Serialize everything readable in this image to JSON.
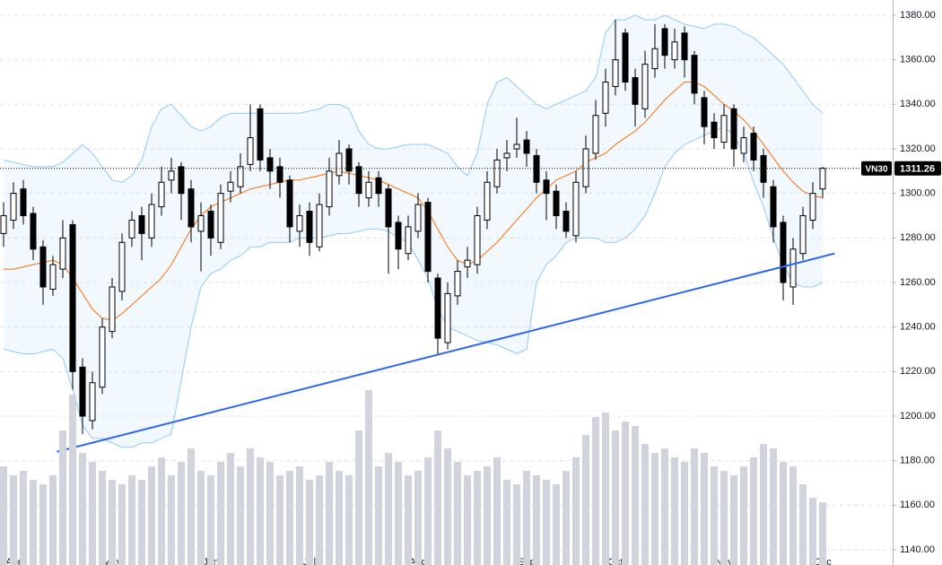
{
  "chart_data": {
    "type": "candlestick",
    "symbol": "VN30",
    "categories": [
      null,
      "Apr",
      null,
      null,
      null,
      null,
      null,
      null,
      null,
      null,
      null,
      "May",
      null,
      null,
      null,
      null,
      null,
      null,
      null,
      null,
      null,
      "Jun",
      null,
      null,
      null,
      null,
      null,
      null,
      null,
      null,
      null,
      "Jul",
      null,
      null,
      null,
      null,
      null,
      null,
      null,
      null,
      null,
      null,
      "Aug",
      null,
      null,
      null,
      null,
      null,
      null,
      null,
      null,
      null,
      null,
      "Sep",
      null,
      null,
      null,
      null,
      null,
      null,
      null,
      null,
      "Oct",
      null,
      null,
      null,
      null,
      null,
      null,
      null,
      null,
      null,
      null,
      "Nov",
      null,
      null,
      null,
      null,
      null,
      null,
      null,
      null,
      null,
      "Dec"
    ],
    "open": [
      1282,
      1288,
      1302,
      1291,
      1276,
      1257,
      1266,
      1286,
      1222,
      1198,
      1213,
      1238,
      1256,
      1280,
      1290,
      1280,
      1294,
      1306,
      1312,
      1302,
      1283,
      1292,
      1278,
      1301,
      1303,
      1313,
      1338,
      1316,
      1312,
      1306,
      1283,
      1292,
      1276,
      1294,
      1308,
      1320,
      1312,
      1298,
      1307,
      1302,
      1287,
      1273,
      1283,
      1296,
      1262,
      1233,
      1254,
      1267,
      1268,
      1288,
      1303,
      1316,
      1320,
      1324,
      1317,
      1306,
      1301,
      1292,
      1281,
      1303,
      1318,
      1336,
      1348,
      1372,
      1352,
      1338,
      1356,
      1374,
      1360,
      1372,
      1362,
      1343,
      1332,
      1323,
      1338,
      1318,
      1327,
      1317,
      1303,
      1287,
      1258,
      1273,
      1288,
      1302
    ],
    "high": [
      1296,
      1305,
      1306,
      1294,
      1279,
      1272,
      1288,
      1288,
      1226,
      1220,
      1244,
      1262,
      1282,
      1292,
      1294,
      1300,
      1312,
      1316,
      1314,
      1306,
      1296,
      1295,
      1304,
      1310,
      1318,
      1340,
      1340,
      1320,
      1316,
      1308,
      1295,
      1296,
      1300,
      1316,
      1324,
      1322,
      1314,
      1310,
      1310,
      1304,
      1290,
      1290,
      1300,
      1298,
      1264,
      1260,
      1270,
      1276,
      1294,
      1310,
      1320,
      1324,
      1334,
      1328,
      1320,
      1310,
      1304,
      1296,
      1310,
      1326,
      1342,
      1356,
      1378,
      1374,
      1356,
      1364,
      1376,
      1376,
      1374,
      1375,
      1364,
      1346,
      1336,
      1340,
      1340,
      1330,
      1330,
      1320,
      1306,
      1290,
      1280,
      1294,
      1305,
      1312
    ],
    "low": [
      1276,
      1284,
      1286,
      1270,
      1250,
      1254,
      1262,
      1212,
      1192,
      1194,
      1210,
      1235,
      1252,
      1276,
      1270,
      1276,
      1290,
      1300,
      1288,
      1278,
      1265,
      1272,
      1275,
      1296,
      1300,
      1310,
      1310,
      1302,
      1298,
      1278,
      1276,
      1272,
      1274,
      1290,
      1304,
      1304,
      1294,
      1294,
      1294,
      1264,
      1266,
      1270,
      1280,
      1260,
      1228,
      1230,
      1250,
      1262,
      1264,
      1284,
      1300,
      1310,
      1316,
      1312,
      1300,
      1288,
      1284,
      1280,
      1278,
      1300,
      1315,
      1330,
      1344,
      1346,
      1330,
      1334,
      1352,
      1356,
      1356,
      1352,
      1340,
      1322,
      1320,
      1320,
      1312,
      1314,
      1310,
      1298,
      1278,
      1252,
      1250,
      1270,
      1284,
      1298
    ],
    "close": [
      1290,
      1300,
      1290,
      1275,
      1258,
      1268,
      1280,
      1220,
      1200,
      1215,
      1240,
      1258,
      1278,
      1288,
      1282,
      1295,
      1305,
      1310,
      1300,
      1285,
      1290,
      1280,
      1300,
      1305,
      1312,
      1325,
      1315,
      1310,
      1305,
      1285,
      1290,
      1278,
      1295,
      1310,
      1318,
      1310,
      1300,
      1305,
      1300,
      1285,
      1275,
      1285,
      1295,
      1265,
      1235,
      1255,
      1265,
      1270,
      1290,
      1305,
      1315,
      1318,
      1322,
      1318,
      1305,
      1300,
      1290,
      1283,
      1305,
      1320,
      1335,
      1350,
      1360,
      1350,
      1340,
      1358,
      1365,
      1362,
      1368,
      1360,
      1345,
      1330,
      1325,
      1335,
      1320,
      1325,
      1315,
      1305,
      1285,
      1260,
      1275,
      1290,
      1300,
      1311.26
    ],
    "volume": [
      44,
      40,
      42,
      38,
      36,
      40,
      60,
      76,
      50,
      46,
      42,
      38,
      36,
      40,
      38,
      44,
      48,
      40,
      46,
      52,
      42,
      40,
      46,
      50,
      44,
      52,
      48,
      46,
      40,
      42,
      44,
      38,
      40,
      46,
      42,
      40,
      60,
      78,
      44,
      50,
      46,
      40,
      42,
      48,
      60,
      52,
      46,
      40,
      42,
      44,
      48,
      38,
      36,
      42,
      40,
      38,
      36,
      42,
      48,
      58,
      66,
      68,
      60,
      64,
      62,
      54,
      50,
      52,
      48,
      46,
      52,
      50,
      44,
      42,
      40,
      44,
      48,
      54,
      52,
      46,
      44,
      36,
      30,
      28
    ],
    "y2lim": [
      0,
      100
    ],
    "volume_color": "#d1d4dc",
    "up_color": "#ffffff",
    "down_color": "#000000",
    "bollinger": {
      "upper": [
        1315,
        1314,
        1313,
        1312,
        1312,
        1312,
        1314,
        1318,
        1322,
        1318,
        1312,
        1306,
        1305,
        1308,
        1315,
        1330,
        1338,
        1340,
        1335,
        1330,
        1328,
        1330,
        1334,
        1336,
        1336,
        1336,
        1336,
        1336,
        1336,
        1336,
        1336,
        1337,
        1338,
        1340,
        1340,
        1338,
        1328,
        1322,
        1320,
        1320,
        1321,
        1322,
        1322,
        1322,
        1320,
        1318,
        1312,
        1308,
        1318,
        1340,
        1350,
        1352,
        1348,
        1344,
        1340,
        1338,
        1340,
        1342,
        1344,
        1346,
        1352,
        1372,
        1378,
        1378,
        1380,
        1378,
        1378,
        1380,
        1378,
        1376,
        1375,
        1374,
        1376,
        1376,
        1375,
        1372,
        1370,
        1366,
        1362,
        1358,
        1352,
        1346,
        1340,
        1336
      ],
      "middle": [
        1266,
        1266,
        1267,
        1268,
        1269,
        1270,
        1268,
        1262,
        1255,
        1248,
        1244,
        1243,
        1246,
        1250,
        1254,
        1258,
        1262,
        1268,
        1276,
        1284,
        1290,
        1294,
        1296,
        1298,
        1300,
        1302,
        1303,
        1304,
        1305,
        1306,
        1306,
        1307,
        1308,
        1309,
        1310,
        1309,
        1308,
        1307,
        1306,
        1304,
        1302,
        1300,
        1298,
        1292,
        1284,
        1276,
        1270,
        1268,
        1270,
        1274,
        1278,
        1283,
        1288,
        1293,
        1298,
        1302,
        1306,
        1308,
        1310,
        1314,
        1316,
        1318,
        1322,
        1325,
        1328,
        1332,
        1337,
        1342,
        1346,
        1350,
        1350,
        1348,
        1344,
        1340,
        1337,
        1333,
        1328,
        1322,
        1316,
        1310,
        1305,
        1301,
        1299,
        1298
      ],
      "lower": [
        1230,
        1229,
        1228,
        1228,
        1229,
        1230,
        1226,
        1212,
        1196,
        1190,
        1190,
        1188,
        1186,
        1186,
        1188,
        1188,
        1190,
        1192,
        1216,
        1240,
        1258,
        1264,
        1266,
        1270,
        1272,
        1276,
        1276,
        1278,
        1278,
        1278,
        1280,
        1280,
        1280,
        1281,
        1282,
        1282,
        1283,
        1284,
        1284,
        1283,
        1280,
        1278,
        1270,
        1262,
        1248,
        1240,
        1238,
        1236,
        1234,
        1233,
        1232,
        1230,
        1228,
        1230,
        1260,
        1268,
        1272,
        1278,
        1280,
        1280,
        1280,
        1278,
        1278,
        1280,
        1284,
        1290,
        1300,
        1312,
        1318,
        1322,
        1324,
        1326,
        1328,
        1330,
        1326,
        1318,
        1305,
        1294,
        1280,
        1268,
        1260,
        1258,
        1258,
        1260
      ],
      "band_color": "#90caf9",
      "middle_color": "#ff6d00"
    },
    "trendline": {
      "color": "#2962ff",
      "points": [
        [
          5.4,
          1184
        ],
        [
          84.2,
          1273
        ]
      ]
    },
    "ylim": [
      1140,
      1380
    ],
    "yticks": [
      {
        "value": 1140,
        "label": "1140.00"
      },
      {
        "value": 1160,
        "label": "1160.00"
      },
      {
        "value": 1180,
        "label": "1180.00"
      },
      {
        "value": 1200,
        "label": "1200.00"
      },
      {
        "value": 1220,
        "label": "1220.00"
      },
      {
        "value": 1240,
        "label": "1240.00"
      },
      {
        "value": 1260,
        "label": "1260.00"
      },
      {
        "value": 1280,
        "label": "1280.00"
      },
      {
        "value": 1300,
        "label": "1300.00"
      },
      {
        "value": 1320,
        "label": "1320.00"
      },
      {
        "value": 1340,
        "label": "1340.00"
      },
      {
        "value": 1360,
        "label": "1360.00"
      },
      {
        "value": 1380,
        "label": "1380.00"
      }
    ],
    "grid": true
  }
}
